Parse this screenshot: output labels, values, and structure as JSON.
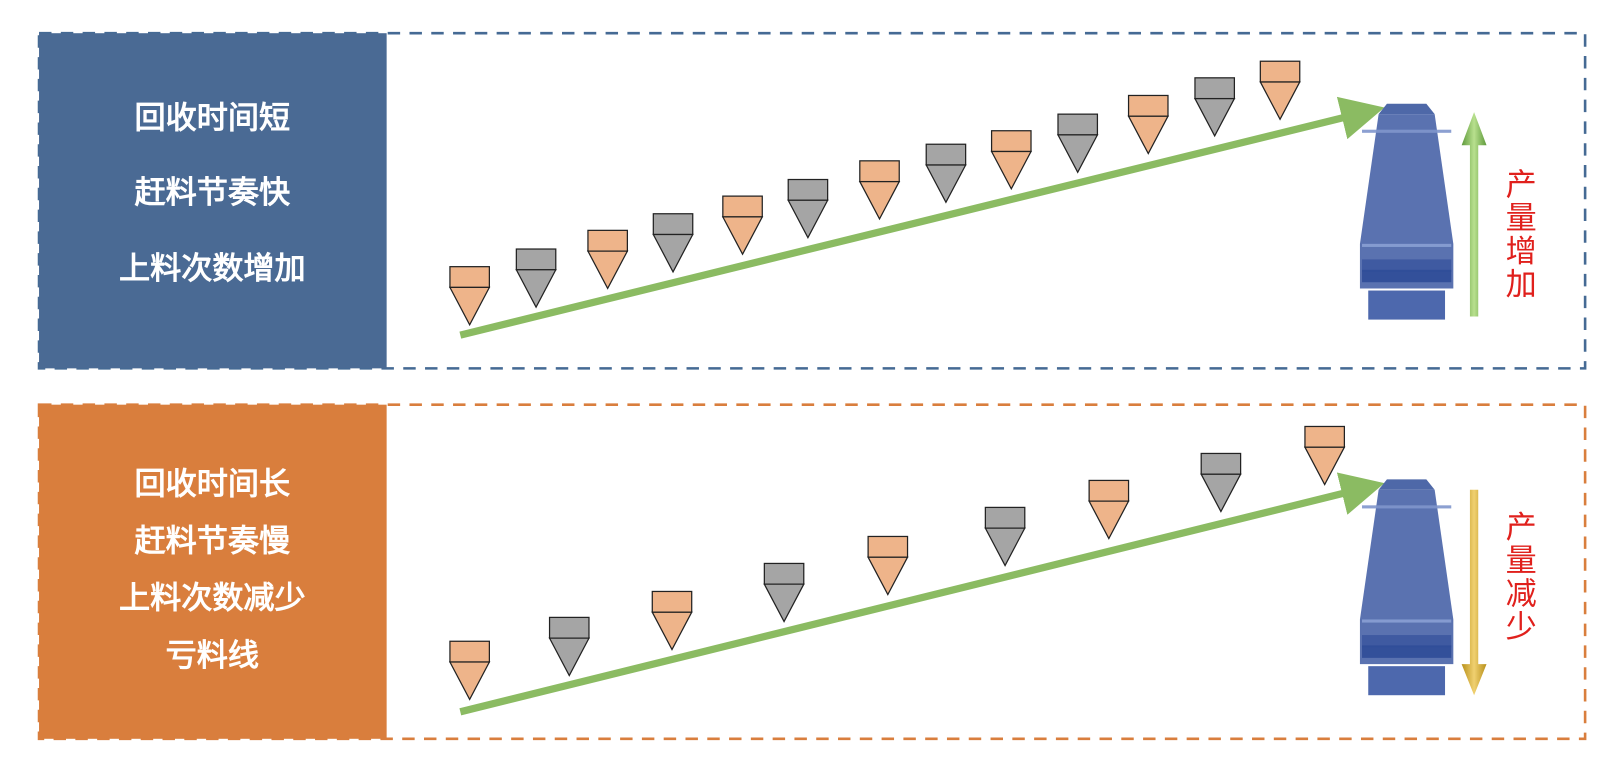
{
  "top_panel": {
    "lines": [
      "回收时间短",
      "赶料节奏快",
      "上料次数增加"
    ],
    "side_label": "产量增加"
  },
  "bottom_panel": {
    "lines": [
      "回收时间长",
      "赶料节奏慢",
      "上料次数减少",
      "亏料线"
    ],
    "side_label": "产量减少"
  }
}
